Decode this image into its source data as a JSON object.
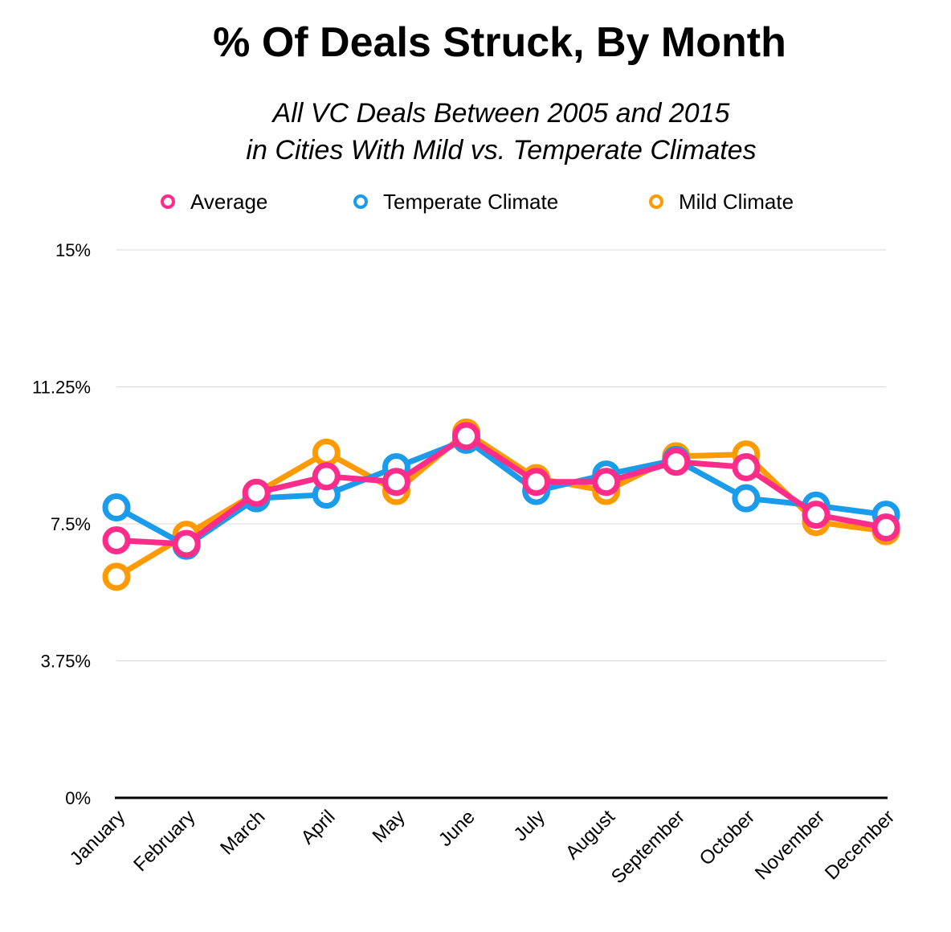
{
  "chart_data": {
    "type": "line",
    "title": "% Of Deals Struck, By Month",
    "subtitle_lines": [
      "All VC Deals Between 2005 and 2015",
      "in Cities With Mild vs. Temperate Climates"
    ],
    "xlabel": "",
    "ylabel": "",
    "categories": [
      "January",
      "February",
      "March",
      "April",
      "May",
      "June",
      "July",
      "August",
      "September",
      "October",
      "November",
      "December"
    ],
    "ylim": [
      0,
      15
    ],
    "yticks": [
      "0%",
      "3.75%",
      "7.5%",
      "11.25%",
      "15%"
    ],
    "ytick_values": [
      0,
      3.75,
      7.5,
      11.25,
      15
    ],
    "grid": true,
    "legend_position": "top",
    "series": [
      {
        "name": "Mild Climate",
        "color": "#FF9A00",
        "values": [
          6.05,
          7.2,
          8.35,
          9.45,
          8.4,
          10.0,
          8.75,
          8.4,
          9.35,
          9.4,
          7.55,
          7.3
        ]
      },
      {
        "name": "Temperate Climate",
        "color": "#1A9BEB",
        "values": [
          7.95,
          6.9,
          8.2,
          8.3,
          9.05,
          9.8,
          8.4,
          8.85,
          9.25,
          8.2,
          8.0,
          7.75
        ]
      },
      {
        "name": "Average",
        "color": "#FF2C8A",
        "values": [
          7.05,
          6.95,
          8.35,
          8.8,
          8.65,
          9.9,
          8.65,
          8.65,
          9.2,
          9.05,
          7.75,
          7.4
        ]
      }
    ],
    "legend_order": [
      "Average",
      "Temperate Climate",
      "Mild Climate"
    ]
  }
}
